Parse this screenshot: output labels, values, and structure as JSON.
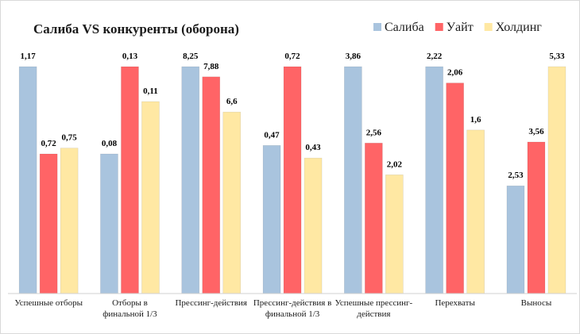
{
  "chart_data": {
    "type": "bar",
    "title": "Салиба VS конкуренты (оборона)",
    "categories": [
      "Успешные отборы",
      "Отборы в финальной 1/3",
      "Прессинг-действия",
      "Прессинг-действия в финальной 1/3",
      "Успешные прессинг-действия",
      "Перехваты",
      "Выносы"
    ],
    "category_lines": [
      [
        "Успешные отборы"
      ],
      [
        "Отборы в",
        "финальной 1/3"
      ],
      [
        "Прессинг-действия"
      ],
      [
        "Прессинг-действия в",
        "финальной 1/3"
      ],
      [
        "Успешные прессинг-",
        "действия"
      ],
      [
        "Перехваты"
      ],
      [
        "Выносы"
      ]
    ],
    "series": [
      {
        "name": "Салиба",
        "color": "#a9c4de",
        "values": [
          1.17,
          0.08,
          8.25,
          0.47,
          3.86,
          2.22,
          2.53
        ],
        "labels": [
          "1,17",
          "0,08",
          "8,25",
          "0,47",
          "3,86",
          "2,22",
          "2,53"
        ]
      },
      {
        "name": "Уайт",
        "color": "#ff6466",
        "values": [
          0.72,
          0.13,
          7.88,
          0.72,
          2.56,
          2.06,
          3.56
        ],
        "labels": [
          "0,72",
          "0,13",
          "7,88",
          "0,72",
          "2,56",
          "2,06",
          "3,56"
        ]
      },
      {
        "name": "Холдинг",
        "color": "#ffe8a3",
        "values": [
          0.75,
          0.11,
          6.6,
          0.43,
          2.02,
          1.6,
          5.33
        ],
        "labels": [
          "0,75",
          "0,11",
          "6,6",
          "0,43",
          "2,02",
          "1,6",
          "5,33"
        ]
      }
    ],
    "scale": "each category scaled independently",
    "xlabel": "",
    "ylabel": "",
    "grid": false,
    "legend": "top-right"
  }
}
